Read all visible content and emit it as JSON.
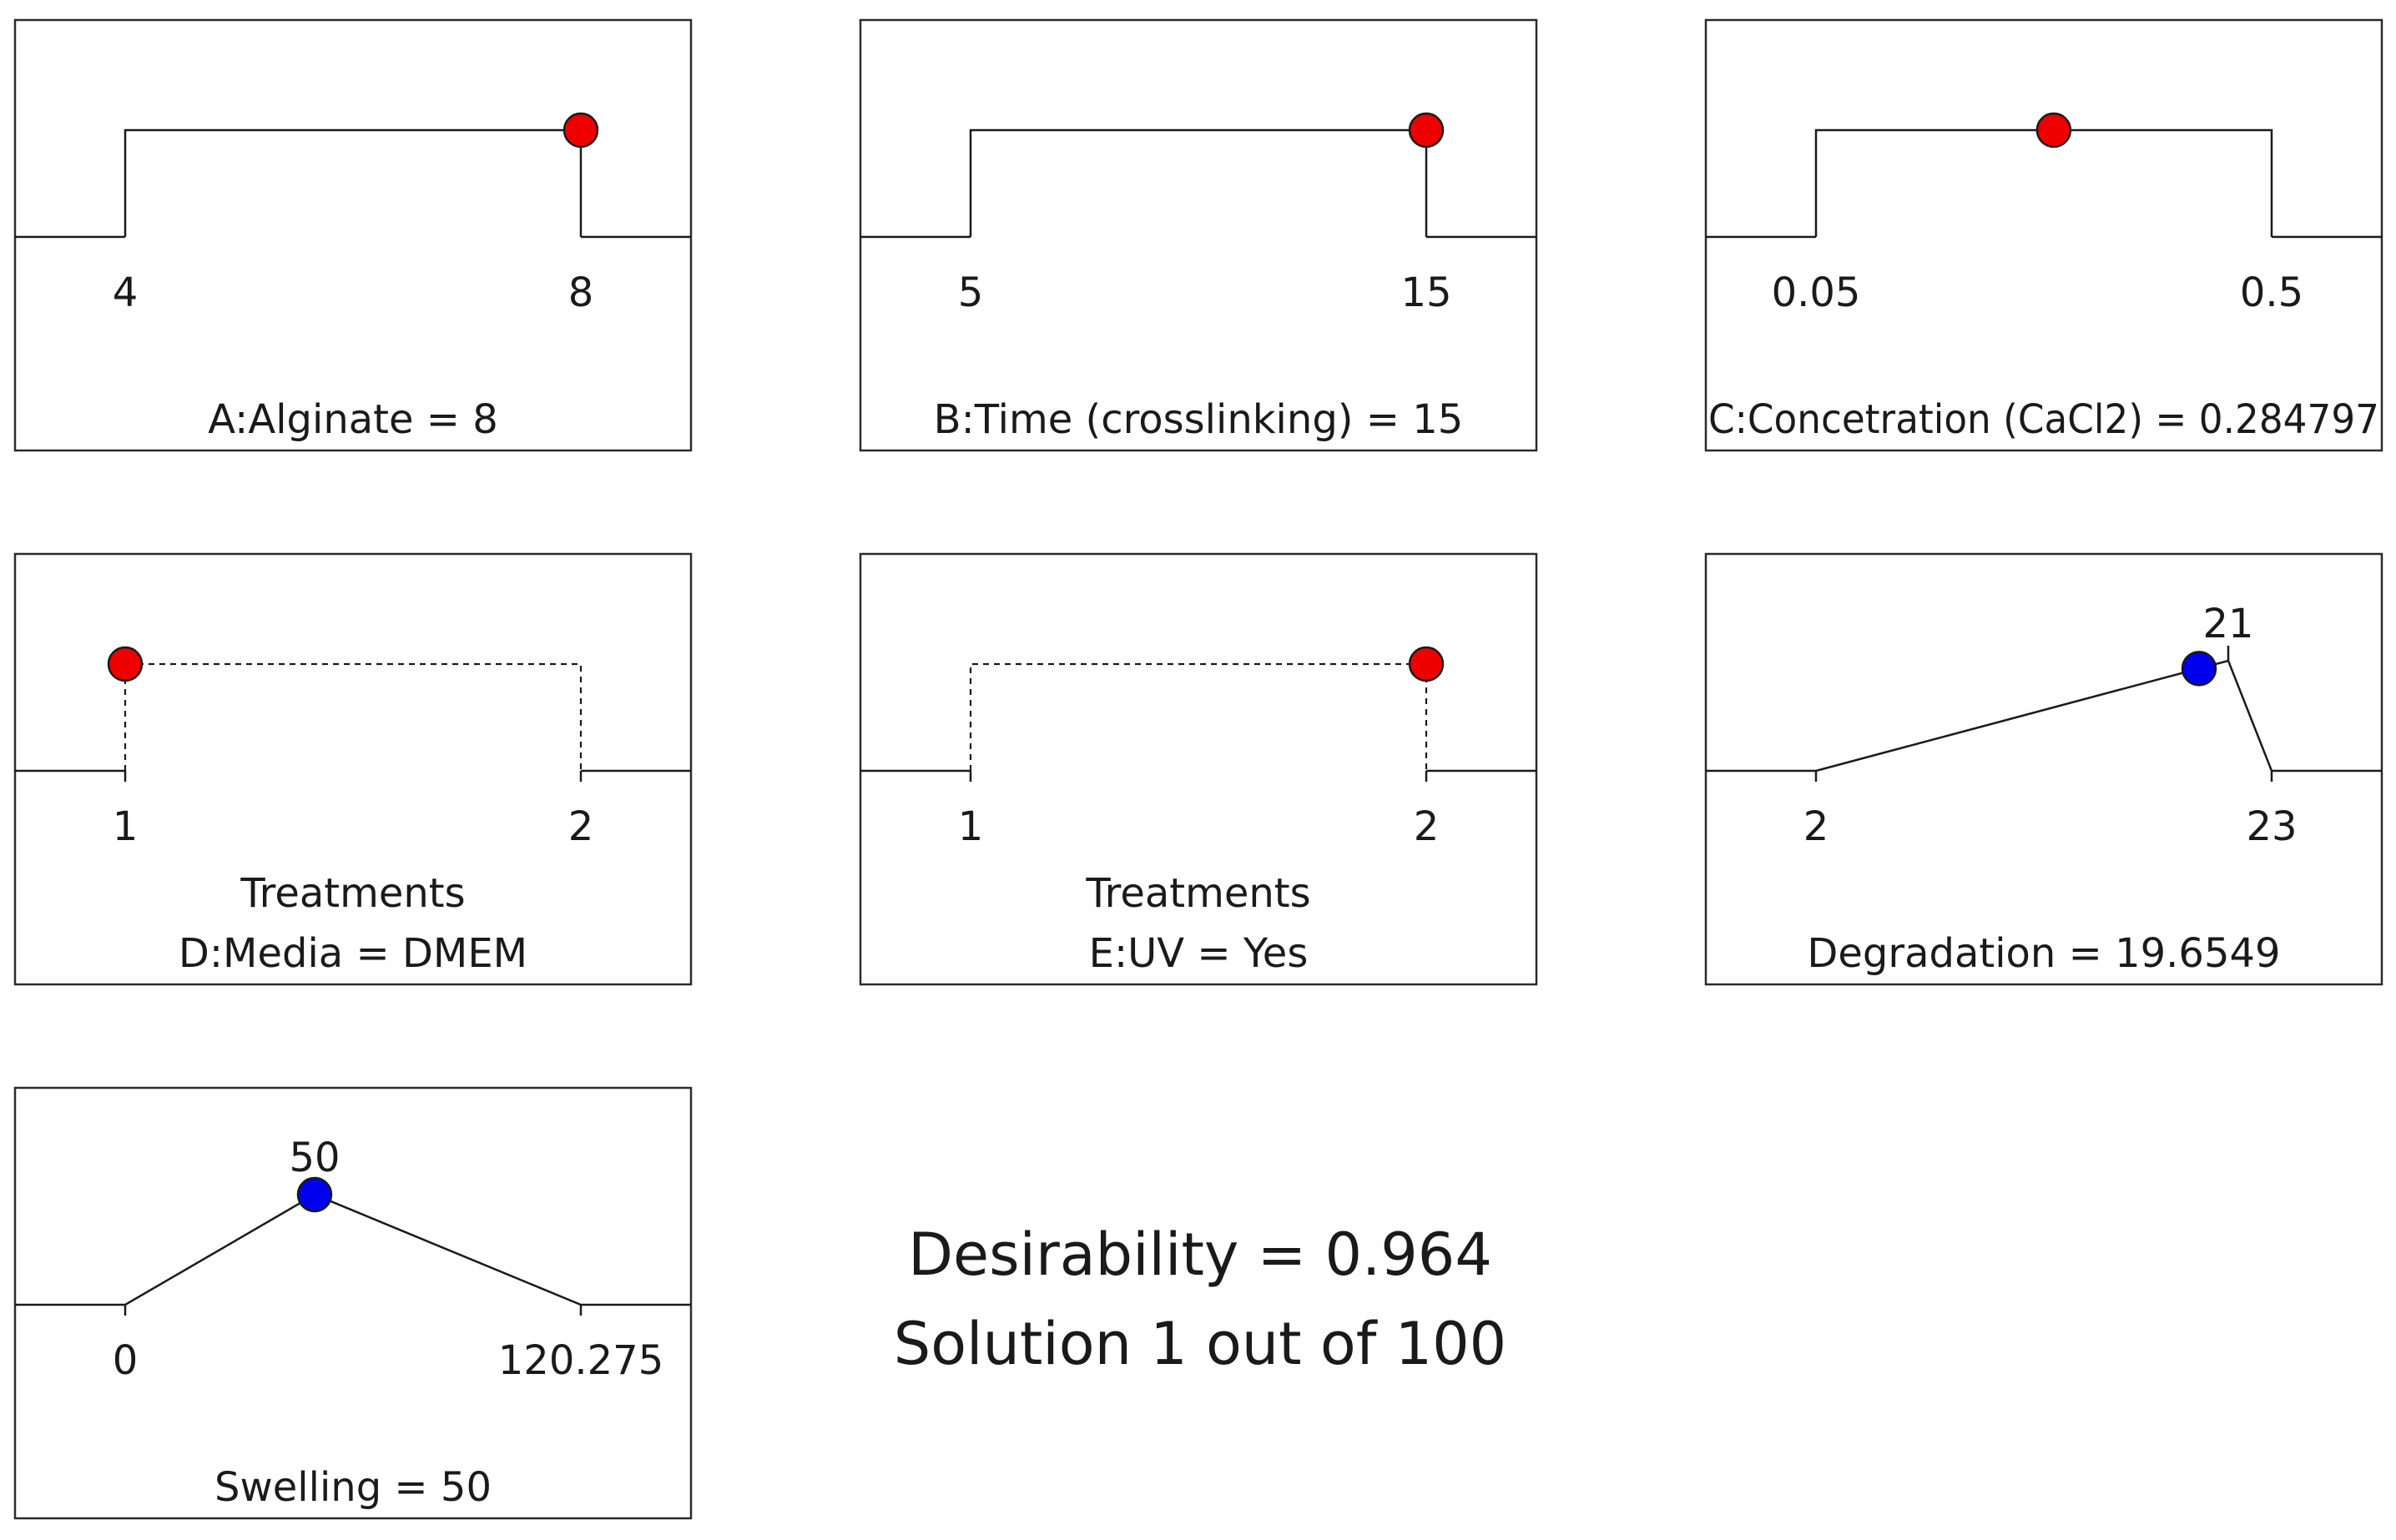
{
  "colors": {
    "factor_point": "#ee0000",
    "response_point": "#0000ee",
    "line": "#1a1a1a",
    "frame": "#2b2b2b"
  },
  "chart_data": [
    {
      "type": "ramp",
      "kind": "factor",
      "style": "solid",
      "low": 4,
      "high": 8,
      "value": 8,
      "tick_labels": [
        "4",
        "8"
      ],
      "sublabel": "",
      "label": "A:Alginate = 8"
    },
    {
      "type": "ramp",
      "kind": "factor",
      "style": "solid",
      "low": 5,
      "high": 15,
      "value": 15,
      "tick_labels": [
        "5",
        "15"
      ],
      "sublabel": "",
      "label": "B:Time (crosslinking) = 15"
    },
    {
      "type": "ramp",
      "kind": "factor",
      "style": "solid",
      "low": 0.05,
      "high": 0.5,
      "value": 0.284797,
      "tick_labels": [
        "0.05",
        "0.5"
      ],
      "sublabel": "",
      "label": "C:Concetration (CaCl2) = 0.284797"
    },
    {
      "type": "ramp",
      "kind": "factor",
      "style": "dashed",
      "low": 1,
      "high": 2,
      "value": 1,
      "tick_labels": [
        "1",
        "2"
      ],
      "sublabel": "Treatments",
      "label": "D:Media = DMEM"
    },
    {
      "type": "ramp",
      "kind": "factor",
      "style": "dashed",
      "low": 1,
      "high": 2,
      "value": 2,
      "tick_labels": [
        "1",
        "2"
      ],
      "sublabel": "Treatments",
      "label": "E:UV = Yes"
    },
    {
      "type": "ramp",
      "kind": "response",
      "style": "target",
      "low": 2,
      "high": 23,
      "target": 21,
      "target_label": "21",
      "value": 19.6549,
      "tick_labels": [
        "2",
        "23"
      ],
      "sublabel": "",
      "label": "Degradation = 19.6549"
    },
    {
      "type": "ramp",
      "kind": "response",
      "style": "target",
      "low": 0,
      "high": 120.275,
      "target": 50,
      "target_label": "50",
      "value": 50,
      "tick_labels": [
        "0",
        "120.275"
      ],
      "sublabel": "",
      "label": "Swelling = 50"
    }
  ],
  "summary": {
    "desirability": "Desirability = 0.964",
    "solution": "Solution 1 out of 100"
  }
}
